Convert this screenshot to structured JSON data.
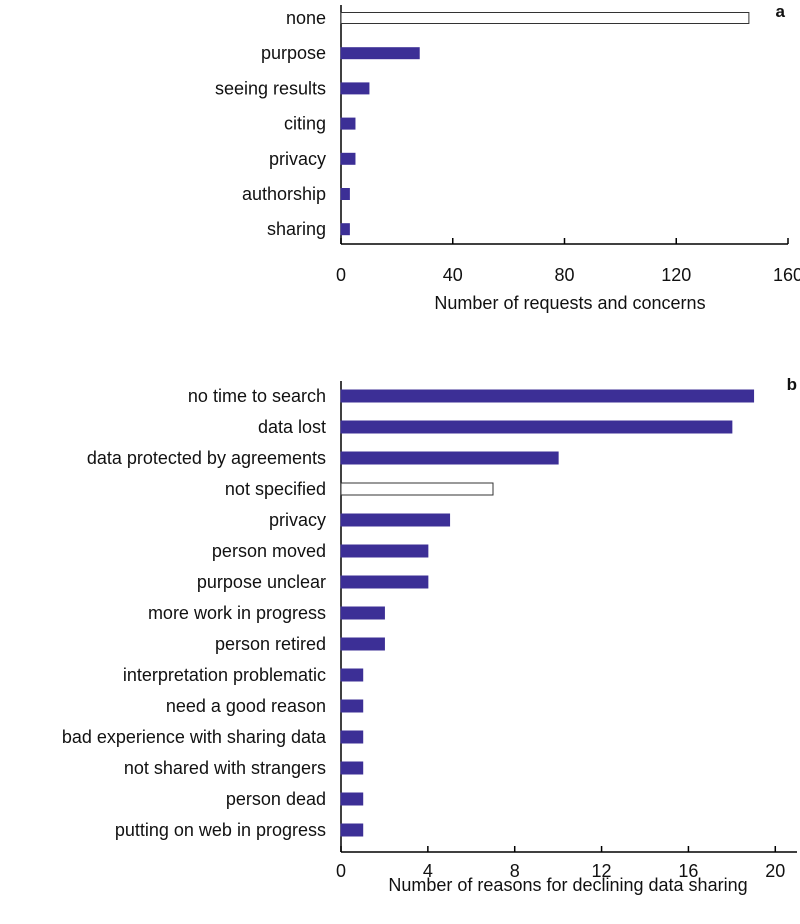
{
  "chart_data": [
    {
      "type": "bar",
      "orientation": "horizontal",
      "panel_label": "a",
      "xlabel": "Number of requests and concerns",
      "xlim": [
        0,
        160
      ],
      "xticks": [
        0,
        40,
        80,
        120,
        160
      ],
      "categories": [
        "none",
        "purpose",
        "seeing results",
        "citing",
        "privacy",
        "authorship",
        "sharing"
      ],
      "values": [
        146,
        28,
        10,
        5,
        5,
        3,
        3
      ],
      "bar_colors": [
        "#ffffff",
        "#3c2f96",
        "#3c2f96",
        "#3c2f96",
        "#3c2f96",
        "#3c2f96",
        "#3c2f96"
      ]
    },
    {
      "type": "bar",
      "orientation": "horizontal",
      "panel_label": "b",
      "xlabel": "Number of reasons for declining data sharing",
      "xlim": [
        0,
        21
      ],
      "xticks": [
        0,
        4,
        8,
        12,
        16,
        20
      ],
      "categories": [
        "no time to search",
        "data lost",
        "data protected by agreements",
        "not specified",
        "privacy",
        "person moved",
        "purpose unclear",
        "more work in progress",
        "person retired",
        "interpretation problematic",
        "need a good reason",
        "bad experience with sharing data",
        "not shared with strangers",
        "person dead",
        "putting on web in progress"
      ],
      "values": [
        19,
        18,
        10,
        7,
        5,
        4,
        4,
        2,
        2,
        1,
        1,
        1,
        1,
        1,
        1
      ],
      "bar_colors": [
        "#3c2f96",
        "#3c2f96",
        "#3c2f96",
        "#ffffff",
        "#3c2f96",
        "#3c2f96",
        "#3c2f96",
        "#3c2f96",
        "#3c2f96",
        "#3c2f96",
        "#3c2f96",
        "#3c2f96",
        "#3c2f96",
        "#3c2f96",
        "#3c2f96"
      ]
    }
  ]
}
